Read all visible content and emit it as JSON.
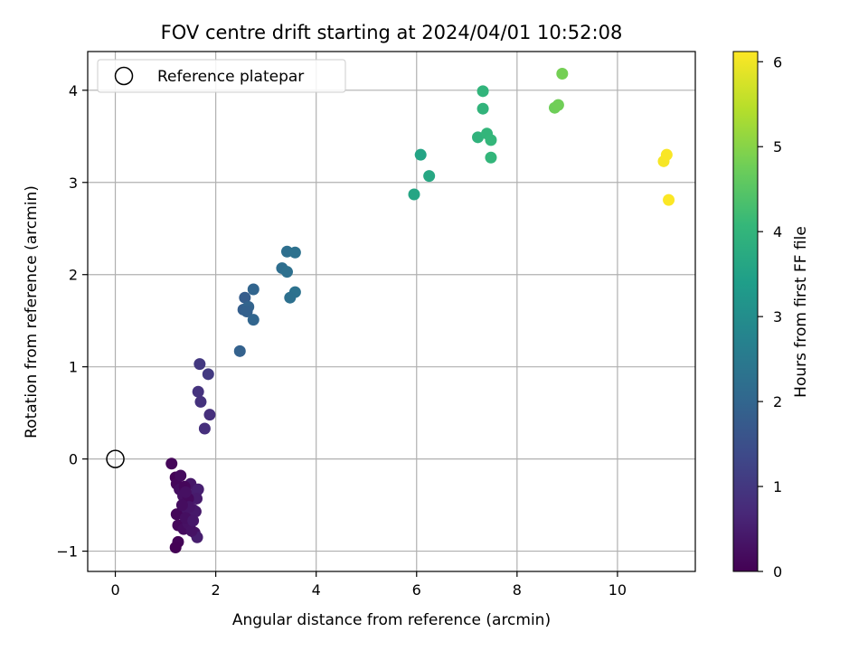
{
  "chart_data": {
    "type": "scatter",
    "title": "FOV centre drift starting at 2024/04/01 10:52:08",
    "xlabel": "Angular distance from reference (arcmin)",
    "ylabel": "Rotation from reference (arcmin)",
    "xlim": [
      -0.55,
      11.55
    ],
    "ylim": [
      -1.22,
      4.42
    ],
    "xticks": [
      0,
      2,
      4,
      6,
      8,
      10
    ],
    "yticks": [
      -1,
      0,
      1,
      2,
      3,
      4
    ],
    "grid": true,
    "legend": {
      "label": "Reference platepar",
      "position": "upper-left"
    },
    "reference": {
      "x": 0,
      "y": 0,
      "marker": "open-circle",
      "color": "#000000"
    },
    "colorbar": {
      "label": "Hours from first FF file",
      "range": [
        0,
        6.12
      ],
      "ticks": [
        0,
        1,
        2,
        3,
        4,
        5,
        6
      ],
      "colormap": "viridis",
      "stops": [
        "#440154",
        "#482878",
        "#3e4989",
        "#31688e",
        "#26828e",
        "#1f9e89",
        "#35b779",
        "#6ece58",
        "#b5de2b",
        "#fde725"
      ]
    },
    "points": [
      {
        "x": 1.12,
        "y": -0.05,
        "hours": 0.1
      },
      {
        "x": 1.2,
        "y": -0.2,
        "hours": 0.05
      },
      {
        "x": 1.22,
        "y": -0.27,
        "hours": 0.12
      },
      {
        "x": 1.3,
        "y": -0.18,
        "hours": 0.18
      },
      {
        "x": 1.28,
        "y": -0.33,
        "hours": 0.22
      },
      {
        "x": 1.35,
        "y": -0.4,
        "hours": 0.26
      },
      {
        "x": 1.42,
        "y": -0.48,
        "hours": 0.3
      },
      {
        "x": 1.32,
        "y": -0.58,
        "hours": 0.34
      },
      {
        "x": 1.22,
        "y": -0.6,
        "hours": 0.08
      },
      {
        "x": 1.25,
        "y": -0.72,
        "hours": 0.14
      },
      {
        "x": 1.36,
        "y": -0.76,
        "hours": 0.2
      },
      {
        "x": 1.45,
        "y": -0.7,
        "hours": 0.28
      },
      {
        "x": 1.5,
        "y": -0.6,
        "hours": 0.36
      },
      {
        "x": 1.55,
        "y": -0.55,
        "hours": 0.4
      },
      {
        "x": 1.58,
        "y": -0.4,
        "hours": 0.44
      },
      {
        "x": 1.5,
        "y": -0.27,
        "hours": 0.38
      },
      {
        "x": 1.62,
        "y": -0.35,
        "hours": 0.48
      },
      {
        "x": 1.65,
        "y": -0.33,
        "hours": 0.52
      },
      {
        "x": 1.62,
        "y": -0.43,
        "hours": 0.46
      },
      {
        "x": 1.6,
        "y": -0.57,
        "hours": 0.42
      },
      {
        "x": 1.58,
        "y": -0.8,
        "hours": 0.32
      },
      {
        "x": 1.63,
        "y": -0.85,
        "hours": 0.5
      },
      {
        "x": 1.4,
        "y": -0.64,
        "hours": 0.24
      },
      {
        "x": 1.45,
        "y": -0.43,
        "hours": 0.16
      },
      {
        "x": 1.38,
        "y": -0.3,
        "hours": 0.11
      },
      {
        "x": 1.52,
        "y": -0.78,
        "hours": 0.3
      },
      {
        "x": 1.47,
        "y": -0.52,
        "hours": 0.35
      },
      {
        "x": 1.25,
        "y": -0.9,
        "hours": 0.06
      },
      {
        "x": 1.2,
        "y": -0.96,
        "hours": 0.02
      },
      {
        "x": 1.33,
        "y": -0.5,
        "hours": 0.21
      },
      {
        "x": 1.4,
        "y": -0.36,
        "hours": 0.27
      },
      {
        "x": 1.55,
        "y": -0.67,
        "hours": 0.39
      },
      {
        "x": 1.68,
        "y": 1.03,
        "hours": 1.0
      },
      {
        "x": 1.85,
        "y": 0.92,
        "hours": 1.05
      },
      {
        "x": 1.65,
        "y": 0.73,
        "hours": 0.9
      },
      {
        "x": 1.7,
        "y": 0.62,
        "hours": 0.88
      },
      {
        "x": 1.88,
        "y": 0.48,
        "hours": 0.85
      },
      {
        "x": 1.78,
        "y": 0.33,
        "hours": 0.82
      },
      {
        "x": 2.48,
        "y": 1.17,
        "hours": 1.9
      },
      {
        "x": 2.58,
        "y": 1.75,
        "hours": 1.8
      },
      {
        "x": 2.55,
        "y": 1.62,
        "hours": 1.85
      },
      {
        "x": 2.65,
        "y": 1.65,
        "hours": 1.95
      },
      {
        "x": 2.62,
        "y": 1.6,
        "hours": 1.88
      },
      {
        "x": 2.75,
        "y": 1.84,
        "hours": 1.98
      },
      {
        "x": 2.75,
        "y": 1.51,
        "hours": 2.0
      },
      {
        "x": 3.32,
        "y": 2.07,
        "hours": 2.2
      },
      {
        "x": 3.42,
        "y": 2.03,
        "hours": 2.25
      },
      {
        "x": 3.42,
        "y": 2.25,
        "hours": 2.22
      },
      {
        "x": 3.58,
        "y": 2.24,
        "hours": 2.28
      },
      {
        "x": 3.58,
        "y": 1.81,
        "hours": 2.3
      },
      {
        "x": 3.48,
        "y": 1.75,
        "hours": 2.26
      },
      {
        "x": 5.95,
        "y": 2.87,
        "hours": 3.6
      },
      {
        "x": 6.08,
        "y": 3.3,
        "hours": 3.55
      },
      {
        "x": 6.25,
        "y": 3.07,
        "hours": 3.65
      },
      {
        "x": 7.22,
        "y": 3.49,
        "hours": 3.95
      },
      {
        "x": 7.32,
        "y": 3.99,
        "hours": 4.0
      },
      {
        "x": 7.32,
        "y": 3.8,
        "hours": 3.98
      },
      {
        "x": 7.4,
        "y": 3.53,
        "hours": 4.02
      },
      {
        "x": 7.48,
        "y": 3.46,
        "hours": 4.05
      },
      {
        "x": 7.48,
        "y": 3.27,
        "hours": 4.03
      },
      {
        "x": 8.75,
        "y": 3.81,
        "hours": 4.75
      },
      {
        "x": 8.82,
        "y": 3.84,
        "hours": 4.78
      },
      {
        "x": 8.9,
        "y": 4.18,
        "hours": 4.82
      },
      {
        "x": 10.92,
        "y": 3.23,
        "hours": 6.05
      },
      {
        "x": 10.98,
        "y": 3.3,
        "hours": 6.08
      },
      {
        "x": 11.02,
        "y": 2.81,
        "hours": 6.1
      }
    ]
  }
}
